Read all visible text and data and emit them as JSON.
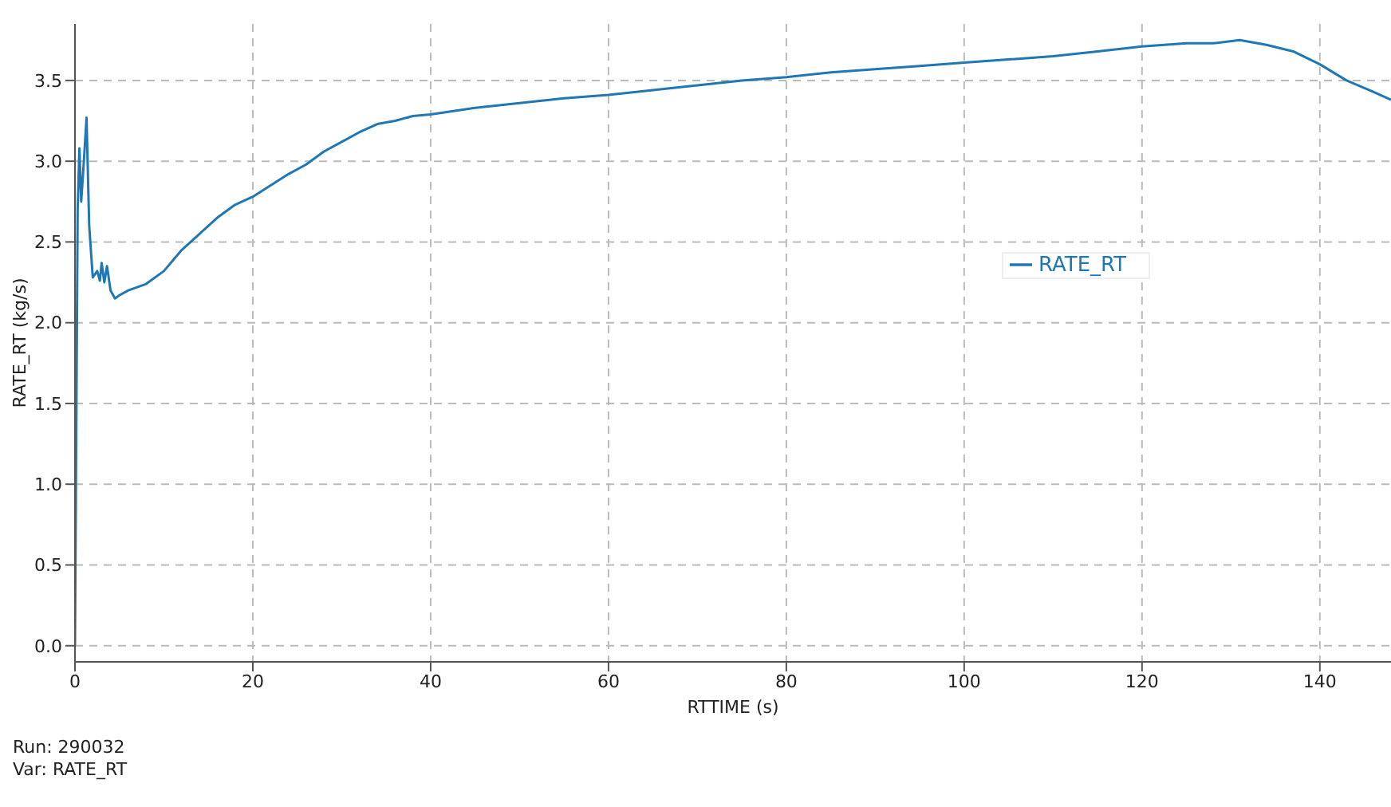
{
  "chart_data": {
    "type": "line",
    "xlabel": "RTTIME (s)",
    "ylabel": "RATE_RT (kg/s)",
    "x": [
      0,
      0.3,
      0.5,
      0.7,
      1.0,
      1.3,
      1.6,
      2.0,
      2.5,
      2.8,
      3.0,
      3.3,
      3.6,
      4.0,
      4.5,
      5,
      6,
      8,
      10,
      12,
      14,
      16,
      18,
      20,
      22,
      24,
      26,
      28,
      30,
      32,
      34,
      36,
      38,
      40,
      45,
      50,
      55,
      60,
      65,
      70,
      75,
      80,
      85,
      90,
      95,
      100,
      105,
      110,
      115,
      120,
      125,
      128,
      131,
      134,
      137,
      140,
      143,
      146,
      148
    ],
    "series": [
      {
        "name": "RATE_RT",
        "color": "#1f77b4",
        "values": [
          0,
          2.7,
          3.08,
          2.75,
          3.0,
          3.27,
          2.6,
          2.28,
          2.32,
          2.26,
          2.37,
          2.25,
          2.35,
          2.2,
          2.15,
          2.17,
          2.2,
          2.24,
          2.32,
          2.45,
          2.55,
          2.65,
          2.73,
          2.78,
          2.85,
          2.92,
          2.98,
          3.06,
          3.12,
          3.18,
          3.23,
          3.25,
          3.28,
          3.29,
          3.33,
          3.36,
          3.39,
          3.41,
          3.44,
          3.47,
          3.5,
          3.52,
          3.55,
          3.57,
          3.59,
          3.61,
          3.63,
          3.65,
          3.68,
          3.71,
          3.73,
          3.73,
          3.75,
          3.72,
          3.68,
          3.6,
          3.5,
          3.43,
          3.38
        ]
      }
    ],
    "xlim": [
      0,
      148
    ],
    "xticks": [
      0,
      20,
      40,
      60,
      80,
      100,
      120,
      140
    ],
    "ylim": [
      -0.1,
      3.85
    ],
    "yticks": [
      {
        "value": 0,
        "label": "0.0"
      },
      0.5,
      {
        "value": 1,
        "label": "1.0"
      },
      1.5,
      {
        "value": 2,
        "label": "2.0"
      },
      2.5,
      {
        "value": 3,
        "label": "3.0"
      },
      3.5
    ],
    "grid": true,
    "legend": "right",
    "marker": "none",
    "line_style": "solid",
    "annotations": [
      "Run: 290032",
      "Var: RATE_RT"
    ]
  }
}
